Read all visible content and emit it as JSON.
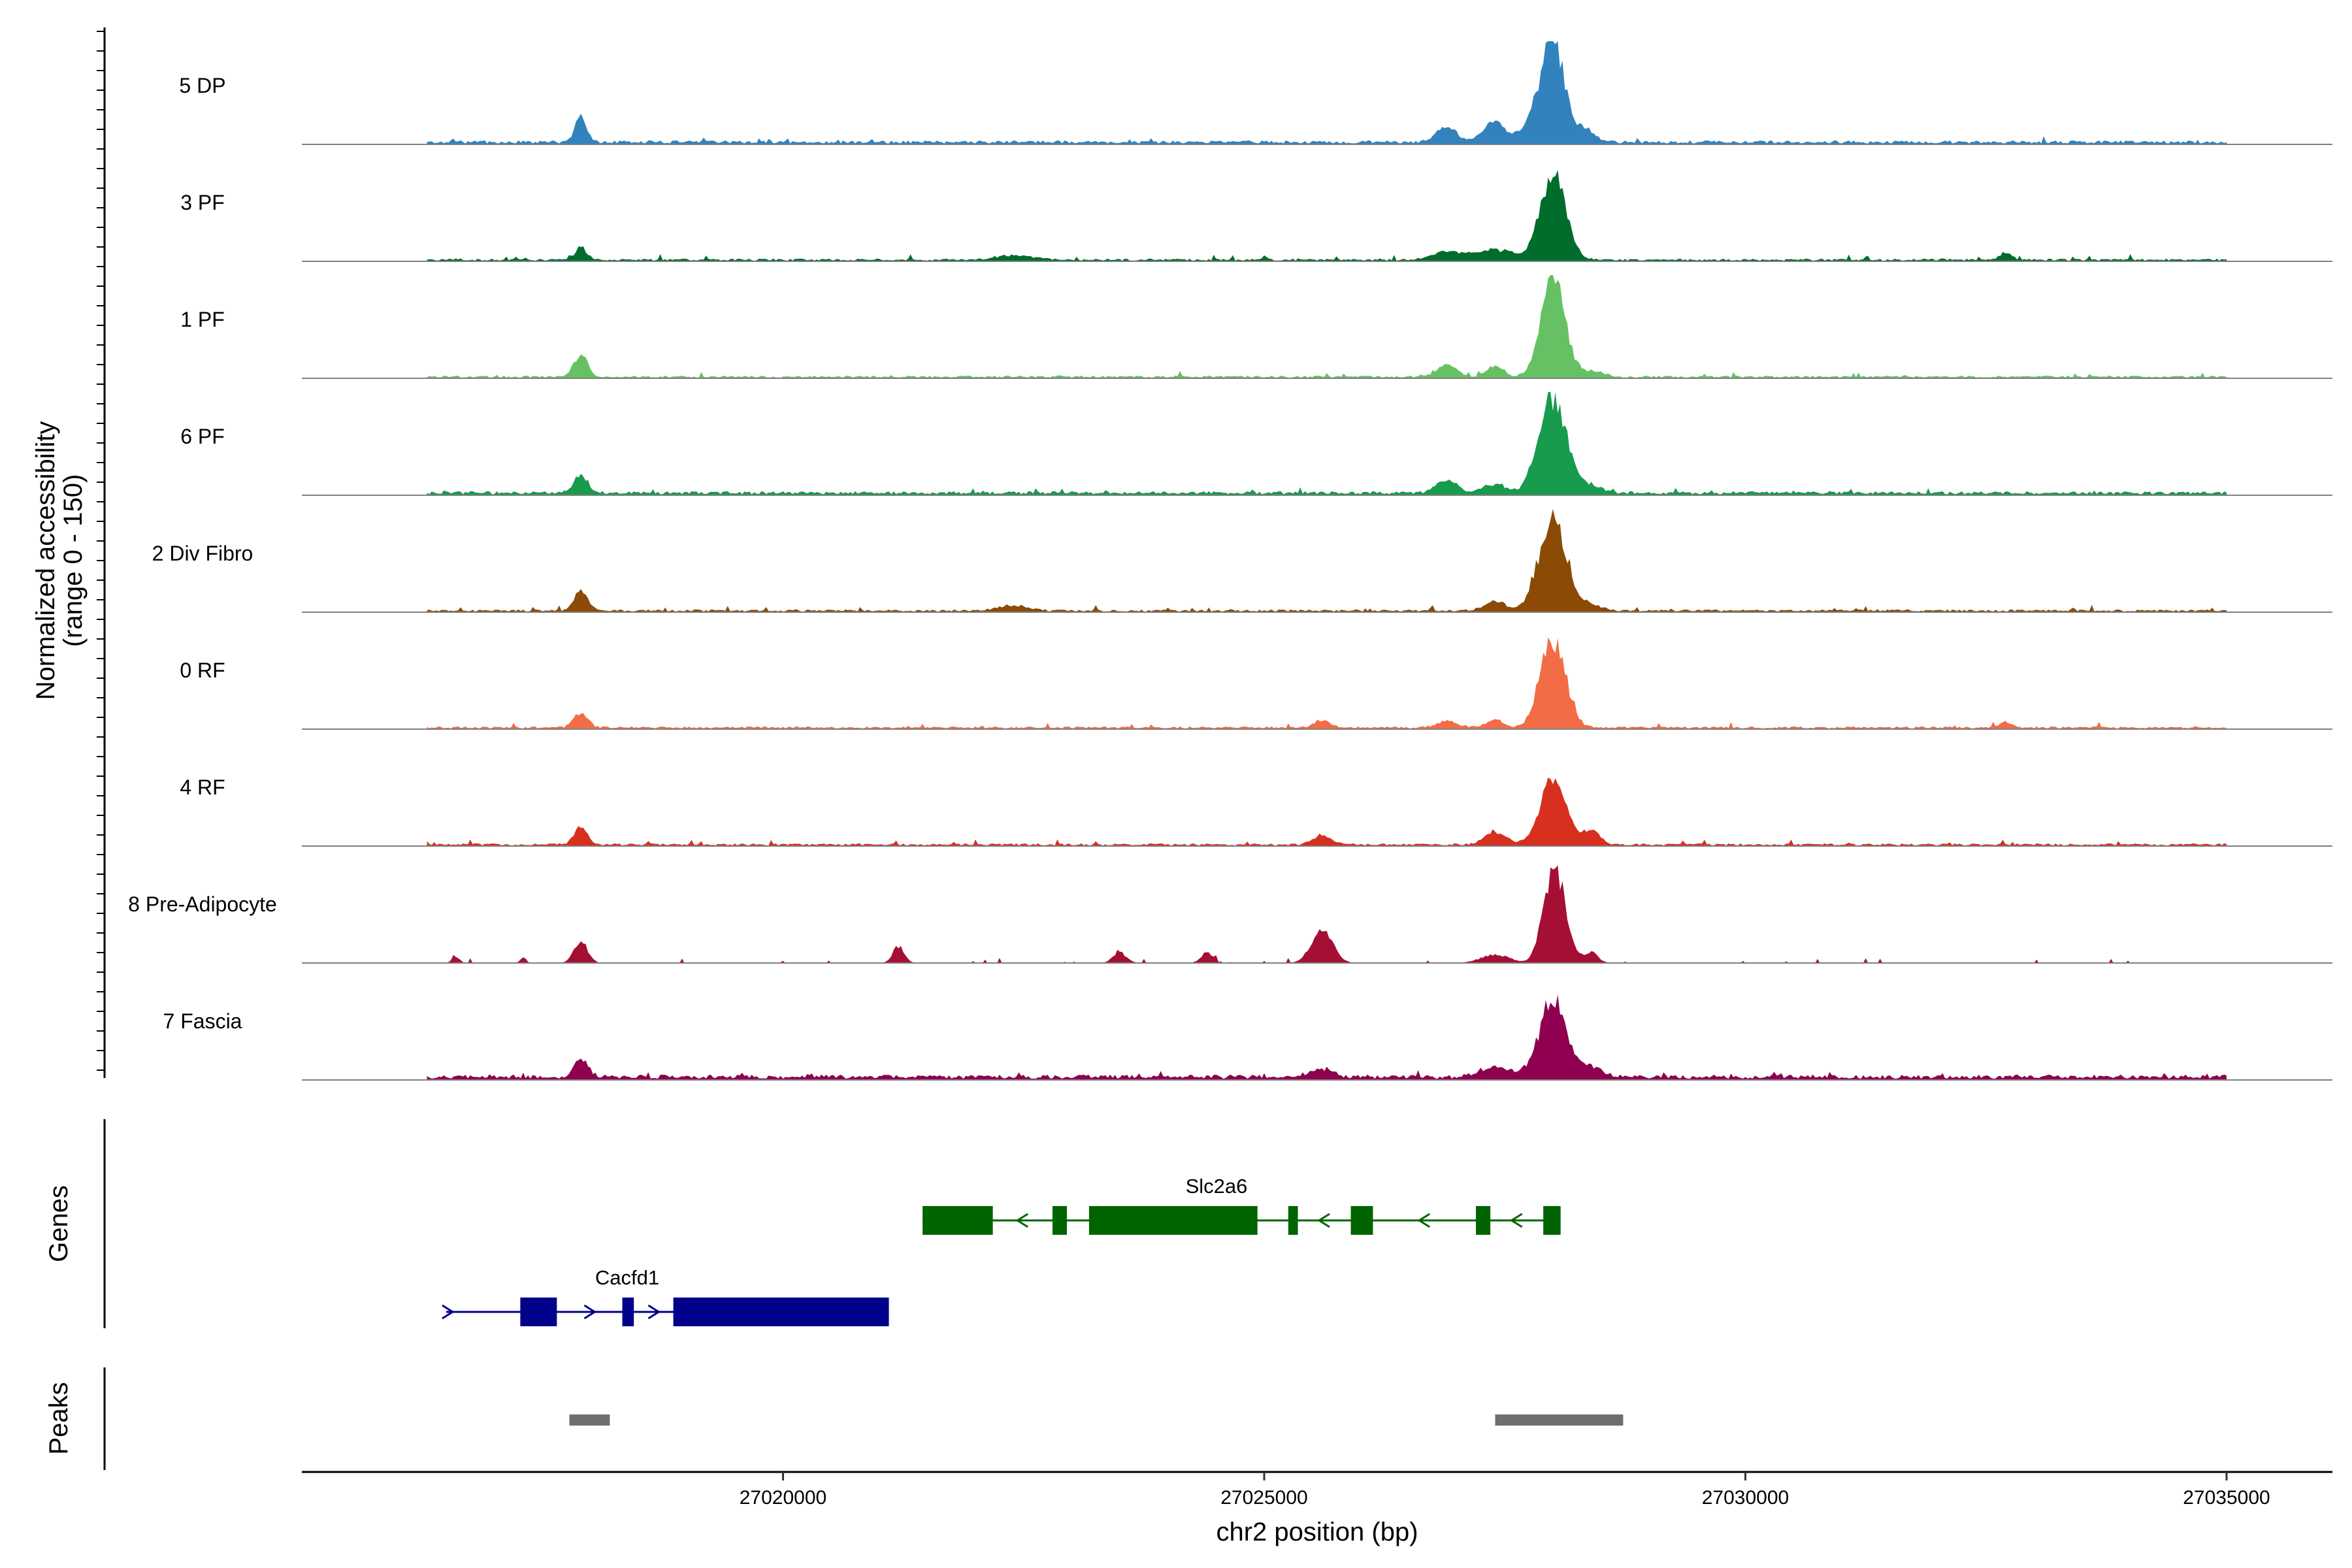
{
  "chart_data": {
    "type": "area",
    "xlabel": "chr2 position (bp)",
    "ylabel_line1": "Normalized accessibility",
    "ylabel_line2": "(range 0 - 150)",
    "y_range": [
      0,
      150
    ],
    "x_range": [
      27015000,
      27036000
    ],
    "x_ticks": [
      27020000,
      27025000,
      27030000,
      27035000
    ],
    "x_tick_labels": [
      "27020000",
      "27025000",
      "27030000",
      "27035000"
    ],
    "track_baseline_color": "#808080",
    "tracks": [
      {
        "label": "5 DP",
        "color": "#3182bd",
        "peaks": [
          [
            27017900,
            0.26,
            60
          ],
          [
            27026900,
            0.14,
            110
          ],
          [
            27027400,
            0.21,
            110
          ],
          [
            27027750,
            0.16,
            90
          ],
          [
            27028000,
            1.0,
            120
          ],
          [
            27028350,
            0.12,
            90
          ]
        ],
        "level": 0.03
      },
      {
        "label": "3 PF",
        "color": "#006d2c",
        "peaks": [
          [
            27017900,
            0.12,
            60
          ],
          [
            27022400,
            0.04,
            200
          ],
          [
            27026900,
            0.08,
            150
          ],
          [
            27027400,
            0.1,
            200
          ],
          [
            27028000,
            0.83,
            130
          ],
          [
            27032700,
            0.07,
            60
          ]
        ],
        "level": 0.02
      },
      {
        "label": "1 PF",
        "color": "#66c164",
        "peaks": [
          [
            27017900,
            0.22,
            70
          ],
          [
            27026900,
            0.12,
            100
          ],
          [
            27027400,
            0.1,
            90
          ],
          [
            27028000,
            1.0,
            120
          ],
          [
            27028400,
            0.06,
            120
          ]
        ],
        "level": 0.02
      },
      {
        "label": "6 PF",
        "color": "#179b4d",
        "peaks": [
          [
            27017900,
            0.17,
            70
          ],
          [
            27026900,
            0.12,
            110
          ],
          [
            27027400,
            0.09,
            120
          ],
          [
            27028000,
            0.94,
            140
          ],
          [
            27028400,
            0.07,
            110
          ]
        ],
        "level": 0.03
      },
      {
        "label": "2 Div Fibro",
        "color": "#8b4a06",
        "peaks": [
          [
            27017900,
            0.19,
            70
          ],
          [
            27022400,
            0.05,
            150
          ],
          [
            27027400,
            0.09,
            110
          ],
          [
            27028000,
            0.93,
            140
          ],
          [
            27028400,
            0.06,
            100
          ]
        ],
        "level": 0.02
      },
      {
        "label": "0 RF",
        "color": "#f26c45",
        "peaks": [
          [
            27017900,
            0.15,
            70
          ],
          [
            27025600,
            0.07,
            80
          ],
          [
            27026900,
            0.06,
            110
          ],
          [
            27027400,
            0.07,
            90
          ],
          [
            27028000,
            0.87,
            130
          ],
          [
            27032700,
            0.06,
            60
          ]
        ],
        "level": 0.02
      },
      {
        "label": "4 RF",
        "color": "#d7301f",
        "peaks": [
          [
            27017900,
            0.16,
            70
          ],
          [
            27025600,
            0.09,
            90
          ],
          [
            27027400,
            0.12,
            110
          ],
          [
            27028000,
            0.67,
            130
          ],
          [
            27028400,
            0.14,
            90
          ]
        ],
        "level": 0.02
      },
      {
        "label": "8 Pre-Adipocyte",
        "color": "#a50f33",
        "peaks": [
          [
            27016600,
            0.06,
            40
          ],
          [
            27017300,
            0.05,
            30
          ],
          [
            27017900,
            0.21,
            70
          ],
          [
            27021200,
            0.16,
            60
          ],
          [
            27023500,
            0.1,
            70
          ],
          [
            27024400,
            0.1,
            60
          ],
          [
            27025600,
            0.31,
            110
          ],
          [
            27027400,
            0.08,
            150
          ],
          [
            27027950,
            0.33,
            90
          ],
          [
            27028050,
            0.69,
            110
          ],
          [
            27028400,
            0.1,
            70
          ]
        ],
        "level": 0.0
      },
      {
        "label": "7 Fascia",
        "color": "#8f0050",
        "peaks": [
          [
            27017900,
            0.17,
            70
          ],
          [
            27025600,
            0.08,
            110
          ],
          [
            27027400,
            0.1,
            150
          ],
          [
            27028000,
            0.74,
            140
          ],
          [
            27028400,
            0.09,
            120
          ]
        ],
        "level": 0.04
      }
    ],
    "genes_title": "Genes",
    "genes": [
      {
        "name": "Slc2a6",
        "strand": "-",
        "color": "#006400",
        "start": 27021450,
        "end": 27028000,
        "row": 1,
        "exons": [
          [
            27021450,
            27022180
          ],
          [
            27022800,
            27022950
          ],
          [
            27023180,
            27024930
          ],
          [
            27025250,
            27025350
          ],
          [
            27025900,
            27026130
          ],
          [
            27027200,
            27027350
          ],
          [
            27027900,
            27028080
          ]
        ]
      },
      {
        "name": "Cacfd1",
        "strand": "+",
        "color": "#00008b",
        "start": 27016500,
        "end": 27021100,
        "row": 2,
        "exons": [
          [
            27017270,
            27017650
          ],
          [
            27018330,
            27018450
          ],
          [
            27018860,
            27021100
          ]
        ]
      }
    ],
    "peaks_title": "Peaks",
    "peaks_color": "#6e6e6e",
    "peak_regions": [
      [
        27017780,
        27018200
      ],
      [
        27027400,
        27028730
      ]
    ]
  }
}
